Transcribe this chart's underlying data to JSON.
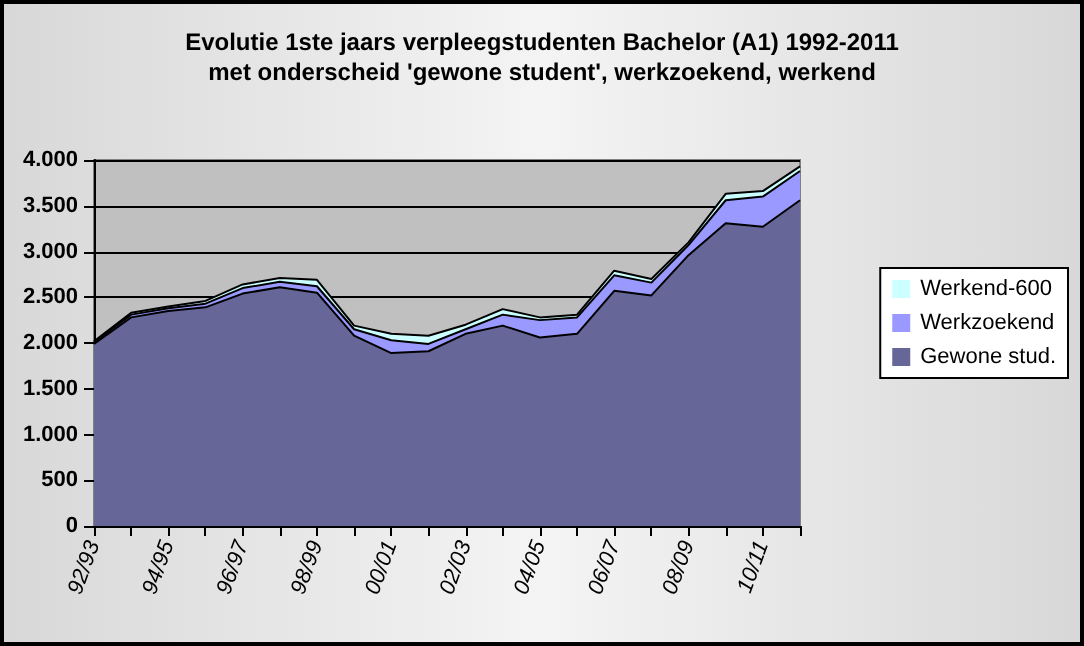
{
  "chart_data": {
    "type": "area",
    "title": "Evolutie 1ste jaars verpleegstudenten Bachelor (A1) 1992-2011",
    "subtitle": "met onderscheid 'gewone student', werkzoekend, werkend",
    "categories": [
      "92/93",
      null,
      "94/95",
      null,
      "96/97",
      null,
      "98/99",
      null,
      "00/01",
      null,
      "02/03",
      null,
      "04/05",
      null,
      "06/07",
      null,
      "08/09",
      null,
      "10/11",
      null
    ],
    "series": [
      {
        "name": "Gewone stud.",
        "color": "#666699",
        "values": [
          1990,
          2280,
          2350,
          2390,
          2540,
          2610,
          2550,
          2080,
          1890,
          1910,
          2100,
          2190,
          2060,
          2100,
          2570,
          2520,
          2960,
          3310,
          3270,
          3560
        ]
      },
      {
        "name": "Werkzoekend",
        "color": "#9999ff",
        "values": [
          20,
          30,
          30,
          40,
          60,
          60,
          70,
          70,
          140,
          80,
          50,
          120,
          190,
          180,
          170,
          140,
          110,
          250,
          330,
          320
        ]
      },
      {
        "name": "Werkend-600",
        "color": "#ccffff",
        "values": [
          10,
          20,
          20,
          30,
          40,
          40,
          70,
          40,
          70,
          90,
          50,
          60,
          30,
          30,
          50,
          40,
          30,
          70,
          60,
          50
        ]
      }
    ],
    "stacked": true,
    "ylim": [
      0,
      4000
    ],
    "yticks": [
      0,
      500,
      {
        "value": 1000,
        "label": "1.000"
      },
      {
        "value": 1500,
        "label": "1.500"
      },
      {
        "value": 2000,
        "label": "2.000"
      },
      {
        "value": 2500,
        "label": "2.500"
      },
      {
        "value": 3000,
        "label": "3.000"
      },
      {
        "value": 3500,
        "label": "3.500"
      },
      {
        "value": 4000,
        "label": "4.000"
      }
    ],
    "grid": "y",
    "legend": "right"
  }
}
